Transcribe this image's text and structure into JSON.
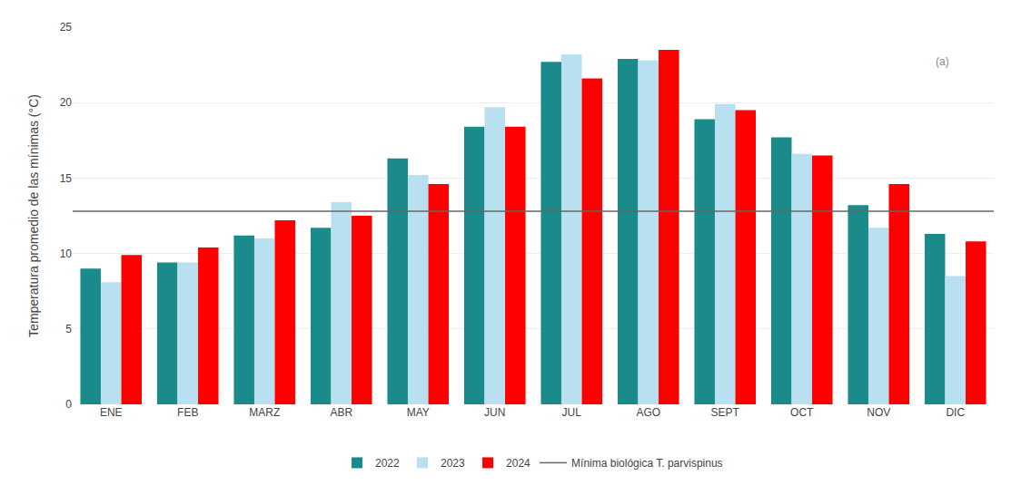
{
  "chart_data": {
    "type": "bar",
    "categories": [
      "ENE",
      "FEB",
      "MARZ",
      "ABR",
      "MAY",
      "JUN",
      "JUL",
      "AGO",
      "SEPT",
      "OCT",
      "NOV",
      "DIC"
    ],
    "series": [
      {
        "name": "2022",
        "color": "#1a8a8a",
        "values": [
          9.0,
          9.4,
          11.2,
          11.7,
          16.3,
          18.4,
          22.7,
          22.9,
          18.9,
          17.7,
          13.2,
          11.3
        ]
      },
      {
        "name": "2023",
        "color": "#b8e0f0",
        "values": [
          8.1,
          9.4,
          11.0,
          13.4,
          15.2,
          19.7,
          23.2,
          22.8,
          19.9,
          16.6,
          11.7,
          8.5
        ]
      },
      {
        "name": "2024",
        "color": "#ff0000",
        "values": [
          9.9,
          10.4,
          12.2,
          12.5,
          14.6,
          18.4,
          21.6,
          23.5,
          19.5,
          16.5,
          14.6,
          10.8
        ]
      },
      {
        "name": "Mínima biológica T. parvispinus",
        "type": "hline",
        "color": "#666666",
        "y": 12.8
      }
    ],
    "ylabel": "Temperatura promedio de las mínimas (°C)",
    "ylim": [
      0,
      25
    ],
    "yticks": [
      0,
      5,
      10,
      15,
      20,
      25
    ],
    "grid": true,
    "legend": "bottom",
    "annotation": "(a)"
  }
}
